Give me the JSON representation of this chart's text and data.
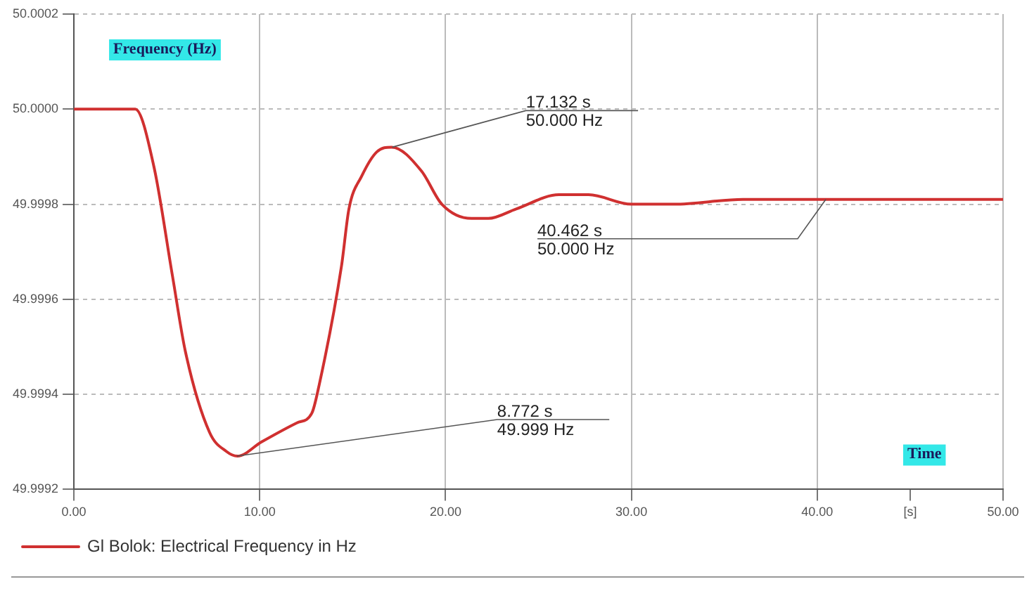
{
  "chart_data": {
    "type": "line",
    "ylabel": "Frequency (Hz)",
    "xlabel": "Time",
    "x": [
      0,
      3.3,
      4.3,
      5.3,
      6,
      7.3,
      8.2,
      8.8,
      10.1,
      12,
      12.8,
      13.2,
      14.4,
      14.8,
      15.5,
      16.3,
      17.1,
      18.7,
      19.8,
      21.4,
      22.3,
      23.8,
      26.1,
      27.7,
      30,
      32.3,
      36,
      40,
      50
    ],
    "series": [
      {
        "name": "Gl Bolok: Electrical Frequency in Hz",
        "color": "#d03030",
        "values": [
          50,
          50,
          49.99988,
          49.99965,
          49.99949,
          49.99932,
          49.99928,
          49.99927,
          49.9993,
          49.99934,
          49.99936,
          49.99942,
          49.99967,
          49.99979,
          49.99986,
          49.99991,
          49.99992,
          49.99987,
          49.9998,
          49.99977,
          49.99977,
          49.99979,
          49.99982,
          49.99982,
          49.9998,
          49.9998,
          49.99981,
          49.99981,
          49.99981
        ]
      }
    ],
    "xlim": [
      0,
      50
    ],
    "xticks": [
      {
        "value": 0,
        "label": "0.00"
      },
      {
        "value": 10,
        "label": "10.00"
      },
      {
        "value": 20,
        "label": "20.00"
      },
      {
        "value": 30,
        "label": "30.00"
      },
      {
        "value": 40,
        "label": "40.00"
      },
      {
        "value": 45,
        "label": "[s]"
      },
      {
        "value": 50,
        "label": "50.00"
      }
    ],
    "ylim": [
      49.9992,
      50.0002
    ],
    "yticks": [
      49.9992,
      49.9994,
      49.9996,
      49.9998,
      {
        "value": 50,
        "label": "50.0000"
      },
      50.0002
    ],
    "annotations": [
      {
        "text": "17.132 s\n50.000 Hz",
        "x": 17.132,
        "y": 49.99992
      },
      {
        "text": "8.772 s\n49.999 Hz",
        "x": 8.772,
        "y": 49.99927
      },
      {
        "text": "40.462 s\n50.000 Hz",
        "x": 40.462,
        "y": 49.99981
      }
    ],
    "grid": true,
    "legend": "bottom left",
    "marker": "none",
    "line_style": "solid"
  }
}
